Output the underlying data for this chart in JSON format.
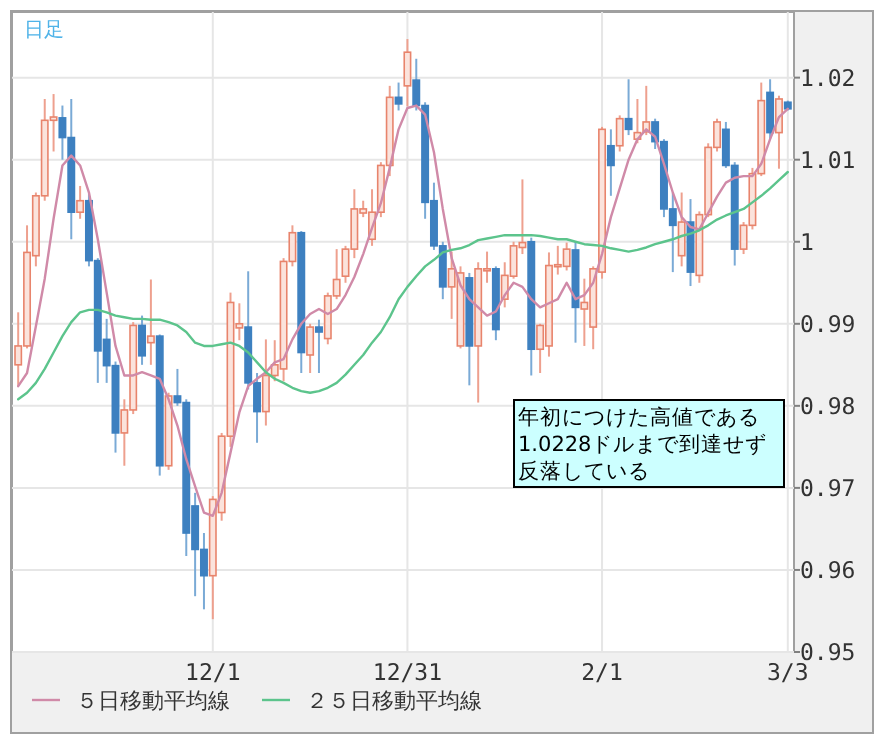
{
  "chart_data": {
    "type": "candlestick",
    "title": "日足",
    "categories": [
      null,
      null,
      null,
      null,
      null,
      null,
      null,
      null,
      null,
      null,
      null,
      null,
      null,
      null,
      null,
      null,
      null,
      null,
      null,
      null,
      null,
      null,
      "12/1",
      null,
      null,
      null,
      null,
      null,
      null,
      null,
      null,
      null,
      null,
      null,
      null,
      null,
      null,
      null,
      null,
      null,
      null,
      null,
      null,
      null,
      "12/31",
      null,
      null,
      null,
      null,
      null,
      null,
      null,
      null,
      null,
      null,
      null,
      null,
      null,
      null,
      null,
      null,
      null,
      null,
      null,
      null,
      null,
      "2/1",
      null,
      null,
      null,
      null,
      null,
      null,
      null,
      null,
      null,
      null,
      null,
      null,
      null,
      null,
      null,
      null,
      null,
      null,
      null,
      null,
      "3/3"
    ],
    "ohlc": [
      [
        0.985,
        0.9914,
        0.9824,
        0.9873
      ],
      [
        0.9873,
        1.002,
        0.987,
        0.9987
      ],
      [
        0.9983,
        1.006,
        0.997,
        1.0056
      ],
      [
        1.0056,
        1.0174,
        1.005,
        1.0148
      ],
      [
        1.0148,
        1.018,
        1.011,
        1.0152
      ],
      [
        1.0151,
        1.0166,
        1.01,
        1.0127
      ],
      [
        1.0127,
        1.0174,
        1.0003,
        1.0036
      ],
      [
        1.0036,
        1.0068,
        1.0028,
        1.005
      ],
      [
        1.005,
        1.006,
        0.997,
        0.9977
      ],
      [
        0.9977,
        0.998,
        0.9828,
        0.9867
      ],
      [
        0.9881,
        0.9906,
        0.9828,
        0.9849
      ],
      [
        0.9849,
        0.9854,
        0.9743,
        0.9767
      ],
      [
        0.9767,
        0.9808,
        0.9727,
        0.9795
      ],
      [
        0.9795,
        0.9902,
        0.979,
        0.9898
      ],
      [
        0.9898,
        0.991,
        0.985,
        0.9861
      ],
      [
        0.9877,
        0.9954,
        0.985,
        0.9885
      ],
      [
        0.9885,
        0.9887,
        0.9715,
        0.9727
      ],
      [
        0.9727,
        0.9816,
        0.9722,
        0.9812
      ],
      [
        0.9812,
        0.9845,
        0.98,
        0.9804
      ],
      [
        0.9804,
        0.9808,
        0.9617,
        0.9645
      ],
      [
        0.9678,
        0.9694,
        0.9568,
        0.9625
      ],
      [
        0.9625,
        0.9645,
        0.9552,
        0.9593
      ],
      [
        0.9593,
        0.969,
        0.954,
        0.9686
      ],
      [
        0.967,
        0.9767,
        0.966,
        0.9763
      ],
      [
        0.9763,
        0.9938,
        0.975,
        0.9926
      ],
      [
        0.9895,
        0.9925,
        0.988,
        0.99
      ],
      [
        0.9896,
        0.9964,
        0.982,
        0.9828
      ],
      [
        0.9828,
        0.984,
        0.9755,
        0.9793
      ],
      [
        0.9793,
        0.9881,
        0.9776,
        0.9837
      ],
      [
        0.9837,
        0.988,
        0.983,
        0.985
      ],
      [
        0.9845,
        0.998,
        0.983,
        0.9976
      ],
      [
        0.9976,
        1.002,
        0.997,
        1.0011
      ],
      [
        1.0011,
        1.0013,
        0.984,
        0.9865
      ],
      [
        0.9862,
        0.99,
        0.984,
        0.9896
      ],
      [
        0.9896,
        0.9905,
        0.984,
        0.989
      ],
      [
        0.9882,
        0.9938,
        0.9875,
        0.9934
      ],
      [
        0.9934,
        0.9991,
        0.993,
        0.9954
      ],
      [
        0.9958,
        0.9995,
        0.995,
        0.9991
      ],
      [
        0.9991,
        1.0064,
        0.998,
        1.004
      ],
      [
        1.0035,
        1.005,
        1.003,
        1.004
      ],
      [
        1.0003,
        1.0064,
        0.9995,
        1.0036
      ],
      [
        1.0036,
        1.0097,
        1.003,
        1.0093
      ],
      [
        1.0093,
        1.019,
        1.008,
        1.0176
      ],
      [
        1.0176,
        1.0194,
        1.016,
        1.0168
      ],
      [
        1.019,
        1.0247,
        1.0165,
        1.0231
      ],
      [
        1.0197,
        1.0223,
        1.016,
        1.0166
      ],
      [
        1.0166,
        1.017,
        1.0028,
        1.0048
      ],
      [
        1.005,
        1.0072,
        0.999,
        0.9995
      ],
      [
        0.9995,
        1.0,
        0.993,
        0.9945
      ],
      [
        0.9945,
        0.9988,
        0.9906,
        0.9967
      ],
      [
        0.9873,
        0.997,
        0.987,
        0.9962
      ],
      [
        0.9956,
        0.9962,
        0.9825,
        0.9873
      ],
      [
        0.9873,
        0.9975,
        0.9804,
        0.9967
      ],
      [
        0.9965,
        0.9988,
        0.995,
        0.9967
      ],
      [
        0.9967,
        0.997,
        0.988,
        0.9893
      ],
      [
        0.993,
        0.9975,
        0.992,
        0.9959
      ],
      [
        0.9958,
        1.0,
        0.9955,
        0.9995
      ],
      [
        0.9993,
        1.0076,
        0.9985,
        0.9999
      ],
      [
        1.0,
        1.0005,
        0.9837,
        0.9869
      ],
      [
        0.9869,
        0.99,
        0.984,
        0.9898
      ],
      [
        0.9873,
        0.9987,
        0.986,
        0.9971
      ],
      [
        0.997,
        0.9995,
        0.996,
        0.9972
      ],
      [
        0.997,
        0.9999,
        0.9965,
        0.9991
      ],
      [
        0.999,
        1.0,
        0.9877,
        0.992
      ],
      [
        0.9918,
        0.9955,
        0.9873,
        0.9926
      ],
      [
        0.9896,
        0.997,
        0.9869,
        0.9967
      ],
      [
        0.9963,
        1.014,
        0.9955,
        1.0137
      ],
      [
        1.0117,
        1.0137,
        1.0056,
        1.0093
      ],
      [
        1.0117,
        1.0154,
        1.011,
        1.015
      ],
      [
        1.015,
        1.0198,
        1.013,
        1.0137
      ],
      [
        1.0125,
        1.0174,
        1.012,
        1.0133
      ],
      [
        1.0134,
        1.019,
        1.013,
        1.0146
      ],
      [
        1.0146,
        1.015,
        1.0113,
        1.0122
      ],
      [
        1.0122,
        1.0125,
        1.003,
        1.004
      ],
      [
        1.004,
        1.006,
        0.9963,
        1.002
      ],
      [
        0.9983,
        1.006,
        0.997,
        1.0024
      ],
      [
        1.0024,
        1.0052,
        0.9946,
        0.9963
      ],
      [
        0.9959,
        1.0037,
        0.995,
        1.0033
      ],
      [
        1.0033,
        1.012,
        1.003,
        1.0115
      ],
      [
        1.0115,
        1.015,
        1.011,
        1.0146
      ],
      [
        1.0137,
        1.0146,
        1.009,
        1.0093
      ],
      [
        1.0093,
        1.0097,
        0.9971,
        0.9991
      ],
      [
        0.9991,
        1.0024,
        0.9985,
        1.002
      ],
      [
        1.002,
        1.009,
        1.0015,
        1.0083
      ],
      [
        1.0083,
        1.0194,
        1.008,
        1.0172
      ],
      [
        1.0182,
        1.0198,
        1.0125,
        1.0133
      ],
      [
        1.0133,
        1.0178,
        1.0089,
        1.0174
      ],
      [
        1.017,
        1.0172,
        1.016,
        1.0162
      ]
    ],
    "series": [
      {
        "name": "５日移動平均線",
        "type": "line",
        "color": "#d08aa8",
        "values": [
          0.9824,
          0.984,
          0.9897,
          0.9955,
          1.0028,
          1.0093,
          1.0105,
          1.0093,
          1.006,
          1.0003,
          0.9938,
          0.9873,
          0.9837,
          0.9837,
          0.9841,
          0.9837,
          0.9833,
          0.9808,
          0.9776,
          0.9735,
          0.9702,
          0.967,
          0.9666,
          0.9694,
          0.9743,
          0.9792,
          0.9824,
          0.9833,
          0.9841,
          0.9853,
          0.9857,
          0.9881,
          0.99,
          0.9912,
          0.9918,
          0.9912,
          0.9918,
          0.9935,
          0.9957,
          0.9985,
          1.0017,
          1.0047,
          1.009,
          1.0137,
          1.0163,
          1.0166,
          1.0155,
          1.0109,
          1.004,
          0.998,
          0.9947,
          0.993,
          0.992,
          0.991,
          0.9915,
          0.9935,
          0.995,
          0.9945,
          0.993,
          0.992,
          0.9925,
          0.993,
          0.995,
          0.993,
          0.9935,
          0.995,
          0.9985,
          1.003,
          1.0065,
          1.01,
          1.0125,
          1.0137,
          1.0128,
          1.0095,
          1.006,
          1.003,
          1.0018,
          1.0015,
          1.0035,
          1.0055,
          1.0072,
          1.0078,
          1.008,
          1.008,
          1.0095,
          1.0125,
          1.0152,
          1.0162
        ]
      },
      {
        "name": "２５日移動平均線",
        "type": "line",
        "color": "#5cc48c",
        "values": [
          0.9808,
          0.9816,
          0.9828,
          0.9845,
          0.9865,
          0.9885,
          0.9902,
          0.9914,
          0.9917,
          0.9917,
          0.9914,
          0.991,
          0.9908,
          0.9906,
          0.9906,
          0.9905,
          0.9905,
          0.9902,
          0.9898,
          0.989,
          0.9877,
          0.9873,
          0.9873,
          0.9875,
          0.9877,
          0.9873,
          0.9865,
          0.9853,
          0.9841,
          0.9833,
          0.9828,
          0.9822,
          0.9818,
          0.9816,
          0.9818,
          0.9822,
          0.9828,
          0.9838,
          0.985,
          0.9862,
          0.9877,
          0.989,
          0.9908,
          0.993,
          0.9945,
          0.9958,
          0.997,
          0.9978,
          0.9987,
          0.999,
          0.9992,
          0.9996,
          1.0002,
          1.0004,
          1.0006,
          1.0008,
          1.0008,
          1.0008,
          1.0008,
          1.0007,
          1.0005,
          1.0003,
          1.0003,
          1.0,
          0.9997,
          0.9996,
          0.9995,
          0.9992,
          0.999,
          0.9988,
          0.999,
          0.9993,
          0.9997,
          1.0,
          1.0003,
          1.0007,
          1.001,
          1.0014,
          1.002,
          1.0027,
          1.0032,
          1.0036,
          1.004,
          1.0048,
          1.0056,
          1.0065,
          1.0075,
          1.0085
        ]
      }
    ],
    "ylim": [
      0.95,
      1.028
    ],
    "yticks": [
      0.95,
      0.96,
      0.97,
      0.98,
      0.99,
      1,
      1.01,
      1.02
    ],
    "grid": true,
    "legend": "bottom",
    "annotations": [
      "年初につけた高値である1.0228ドルまで到達せず反落している"
    ]
  }
}
